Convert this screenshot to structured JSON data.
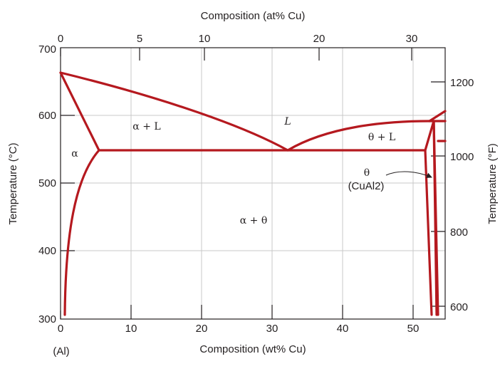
{
  "diagram": {
    "top_title": "Composition (at% Cu)",
    "bottom_title": "Composition (wt% Cu)",
    "left_title": "Temperature (°C)",
    "right_title": "Temperature (°F)",
    "bottom_ticks": [
      "0",
      "10",
      "20",
      "30",
      "40",
      "50"
    ],
    "top_ticks": [
      "0",
      "5",
      "10",
      "20",
      "30"
    ],
    "left_ticks": [
      "300",
      "400",
      "500",
      "600",
      "700"
    ],
    "right_ticks": [
      "600",
      "800",
      "1000",
      "1200"
    ],
    "al_label": "(Al)",
    "phases": {
      "alpha": "α",
      "alpha_l": "α + L",
      "liquid": "L",
      "theta_l": "θ + L",
      "theta": "θ",
      "cual2": "(CuAl2)",
      "alpha_theta": "α + θ"
    },
    "colors": {
      "curve": "#b5191f",
      "grid": "#c8c8c8",
      "axis": "#231f20"
    }
  }
}
